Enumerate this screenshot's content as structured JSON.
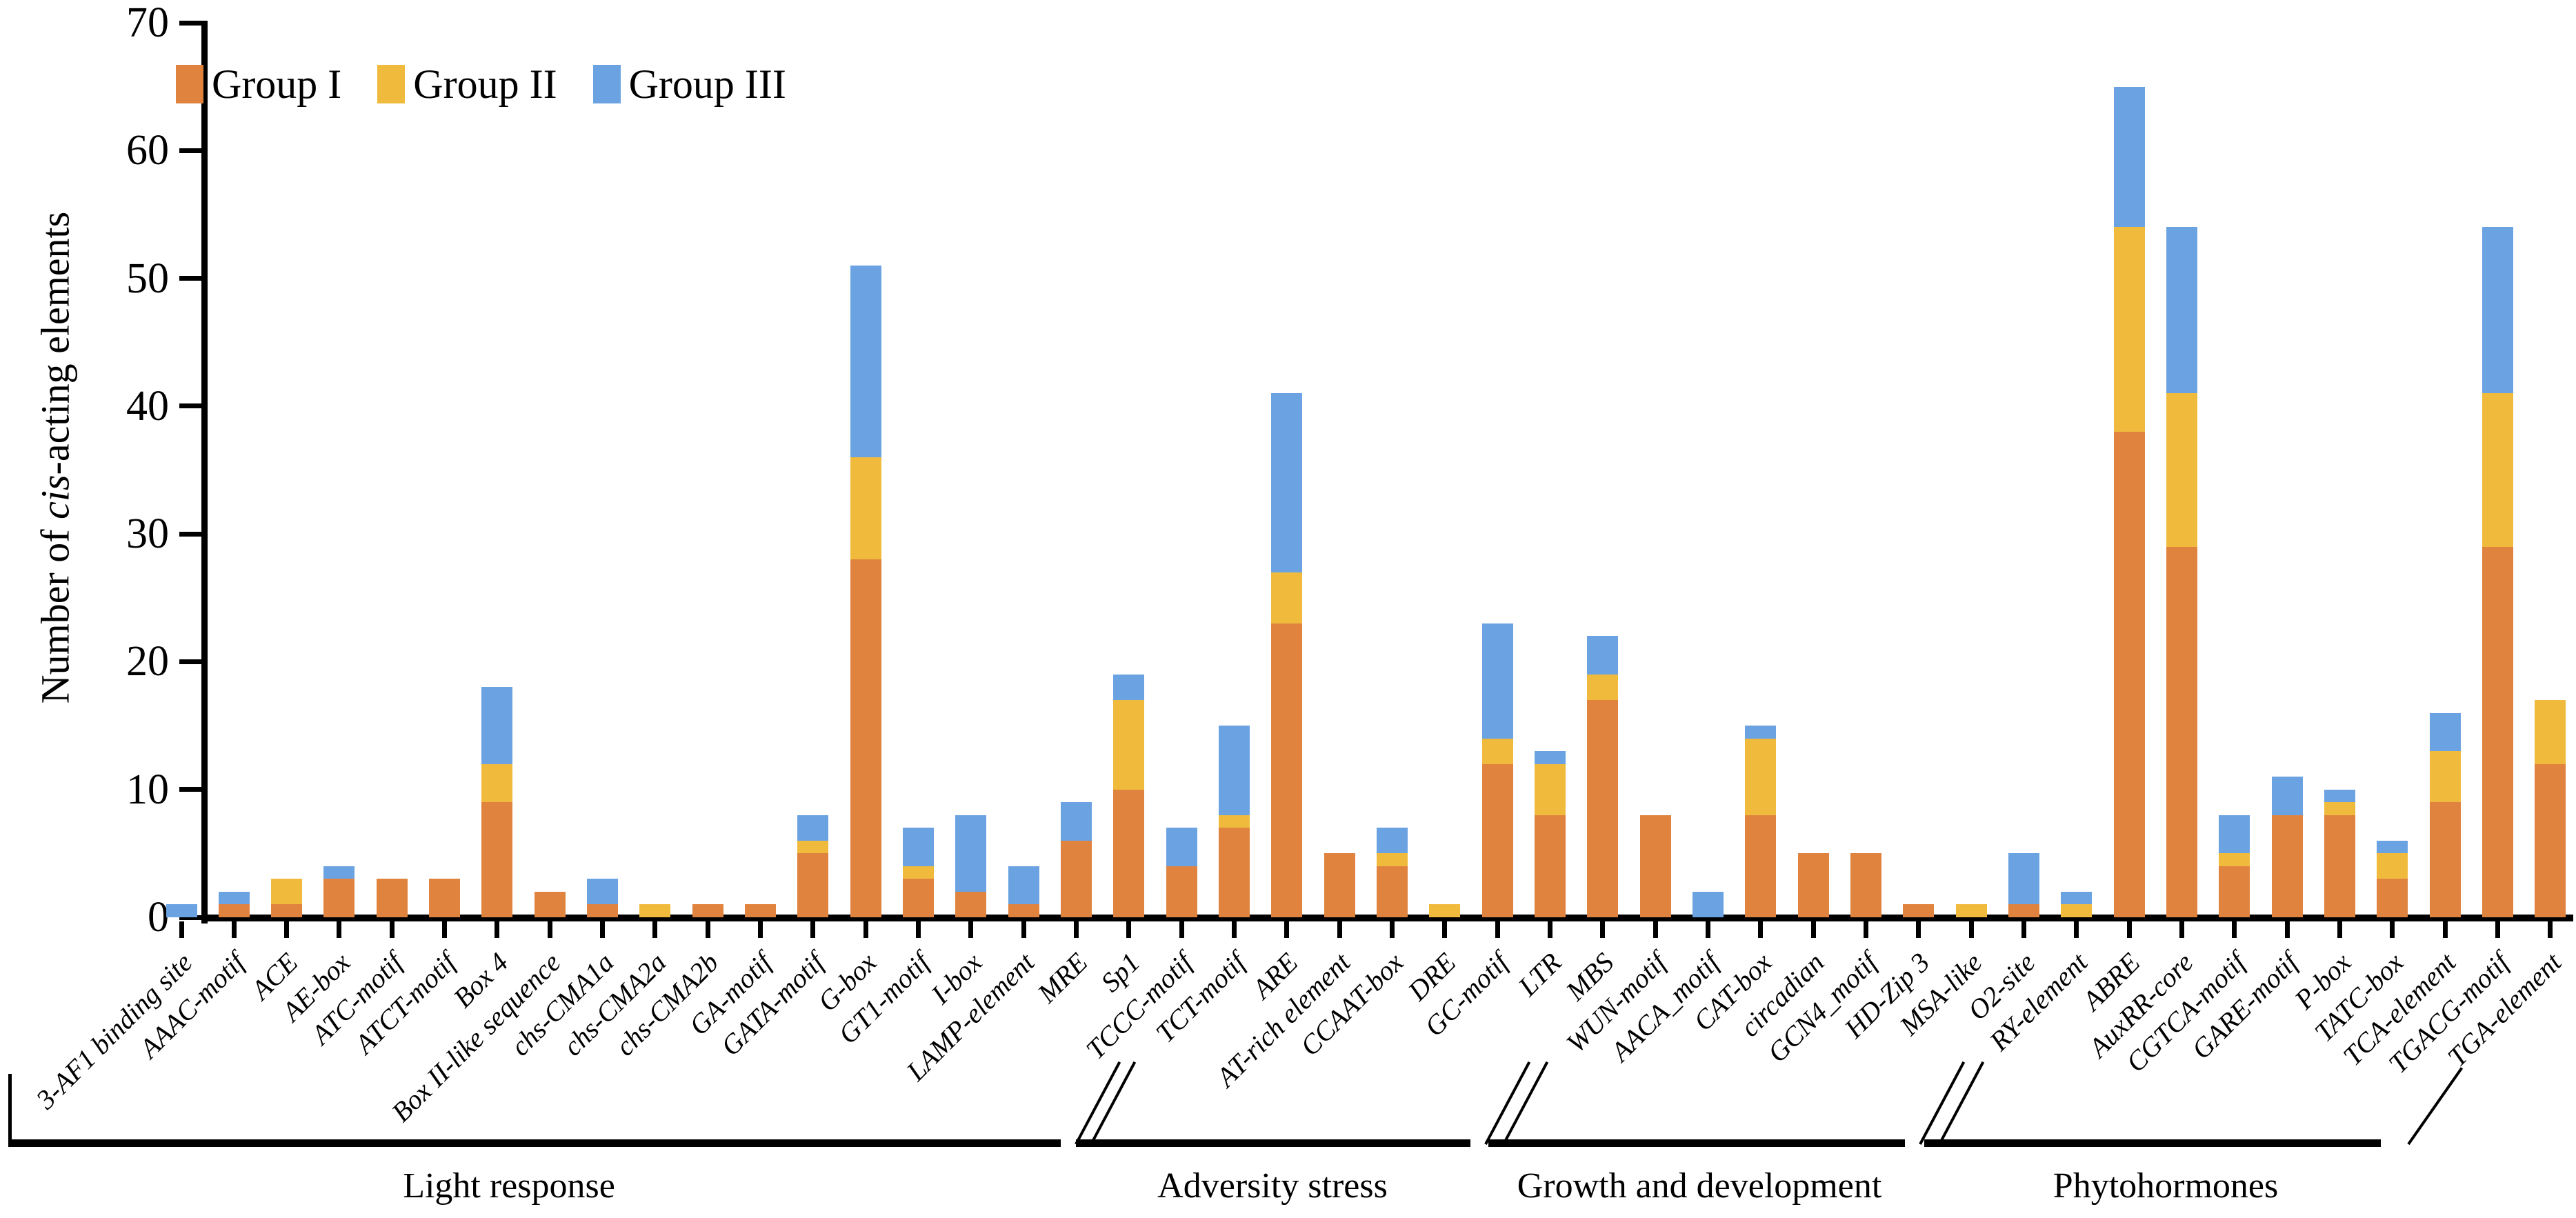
{
  "figure": {
    "ylabel_prefix": "Number of ",
    "ylabel_italic": "cis",
    "ylabel_suffix": "-acting elements"
  },
  "chart_data": {
    "type": "bar",
    "stacked": true,
    "ylabel": "Number of cis-acting elements",
    "xlabel": "",
    "ylim": [
      0,
      70
    ],
    "yticks": [
      0,
      10,
      20,
      30,
      40,
      50,
      60,
      70
    ],
    "grid": false,
    "legend_position": "top-left-inside",
    "categories": [
      "3-AF1 binding site",
      "AAAC-motif",
      "ACE",
      "AE-box",
      "ATC-motif",
      "ATCT-motif",
      "Box 4",
      "Box II-like sequence",
      "chs-CMA1a",
      "chs-CMA2a",
      "chs-CMA2b",
      "GA-motif",
      "GATA-motif",
      "G-box",
      "GT1-motif",
      "I-box",
      "LAMP-element",
      "MRE",
      "Sp1",
      "TCCC-motif",
      "TCT-motif",
      "ARE",
      "AT-rich element",
      "CCAAT-box",
      "DRE",
      "GC-motif",
      "LTR",
      "MBS",
      "WUN-motif",
      "AACA_motif",
      "CAT-box",
      "circadian",
      "GCN4_motif",
      "HD-Zip 3",
      "MSA-like",
      "O2-site",
      "RY-element",
      "ABRE",
      "AuxRR-core",
      "CGTCA-motif",
      "GARE-motif",
      "P-box",
      "TATC-box",
      "TCA-element",
      "TGACG-motif",
      "TGA-element"
    ],
    "series": [
      {
        "name": "Group I",
        "color": "#E0833F",
        "values": [
          0,
          1,
          1,
          3,
          3,
          3,
          9,
          2,
          1,
          0,
          1,
          1,
          5,
          28,
          3,
          2,
          1,
          6,
          10,
          4,
          7,
          23,
          5,
          4,
          0,
          12,
          8,
          17,
          8,
          0,
          8,
          5,
          5,
          1,
          0,
          1,
          0,
          38,
          29,
          4,
          8,
          8,
          3,
          9,
          29,
          12
        ]
      },
      {
        "name": "Group II",
        "color": "#F0BB3D",
        "values": [
          0,
          0,
          2,
          0,
          0,
          0,
          3,
          0,
          0,
          1,
          0,
          0,
          1,
          8,
          1,
          0,
          0,
          0,
          7,
          0,
          1,
          4,
          0,
          1,
          1,
          2,
          4,
          2,
          0,
          0,
          6,
          0,
          0,
          0,
          1,
          0,
          1,
          16,
          12,
          1,
          0,
          1,
          2,
          4,
          12,
          5
        ]
      },
      {
        "name": "Group III",
        "color": "#6BA3E2",
        "values": [
          1,
          1,
          0,
          1,
          0,
          0,
          6,
          0,
          2,
          0,
          0,
          0,
          2,
          15,
          3,
          6,
          3,
          3,
          2,
          3,
          7,
          14,
          0,
          2,
          0,
          9,
          1,
          3,
          0,
          2,
          1,
          0,
          0,
          0,
          0,
          4,
          1,
          11,
          13,
          3,
          3,
          1,
          1,
          3,
          13,
          0
        ]
      }
    ],
    "groups": [
      {
        "label": "Light response",
        "from": 0,
        "to": 20
      },
      {
        "label": "Adversity stress",
        "from": 21,
        "to": 28
      },
      {
        "label": "Growth and development",
        "from": 29,
        "to": 36
      },
      {
        "label": "Phytohormones",
        "from": 37,
        "to": 45
      }
    ]
  }
}
